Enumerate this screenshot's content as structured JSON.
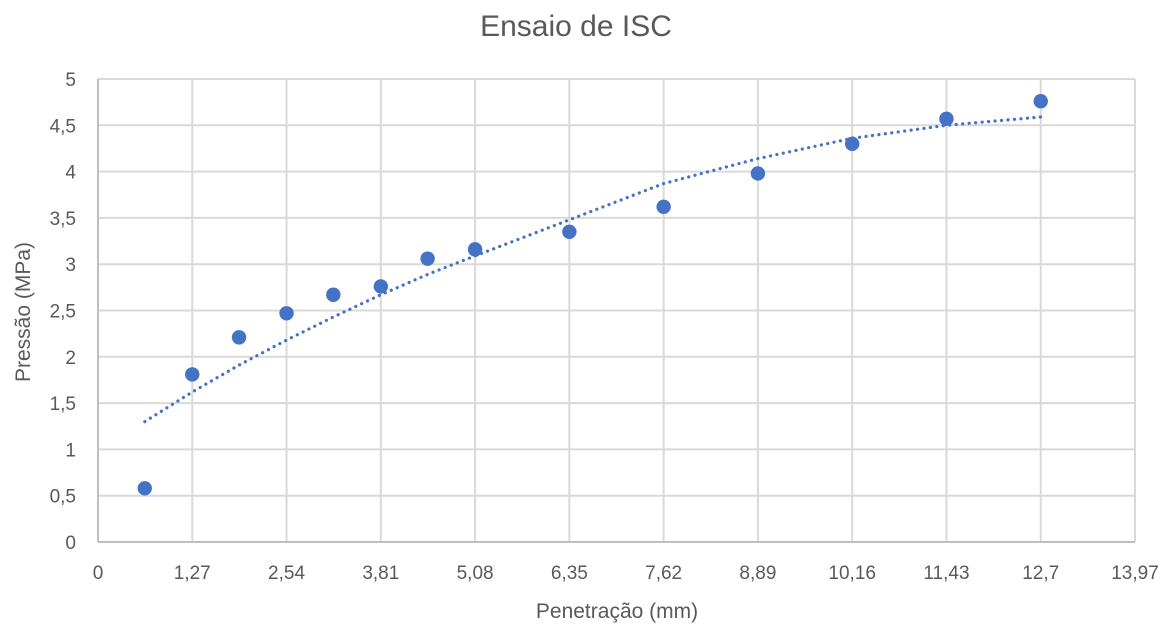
{
  "chart_data": {
    "type": "scatter",
    "title": "Ensaio de ISC",
    "xlabel": "Penetração (mm)",
    "ylabel": "Pressão (MPa)",
    "xlim": [
      0,
      13.97
    ],
    "ylim": [
      0,
      5
    ],
    "x_ticks": [
      0,
      1.27,
      2.54,
      3.81,
      5.08,
      6.35,
      7.62,
      8.89,
      10.16,
      11.43,
      12.7,
      13.97
    ],
    "x_tick_labels": [
      "0",
      "1,27",
      "2,54",
      "3,81",
      "5,08",
      "6,35",
      "7,62",
      "8,89",
      "10,16",
      "11,43",
      "12,7",
      "13,97"
    ],
    "y_ticks": [
      0,
      0.5,
      1,
      1.5,
      2,
      2.5,
      3,
      3.5,
      4,
      4.5,
      5
    ],
    "y_tick_labels": [
      "0",
      "0,5",
      "1",
      "1,5",
      "2",
      "2,5",
      "3",
      "3,5",
      "4",
      "4,5",
      "5"
    ],
    "grid": true,
    "series": [
      {
        "type": "scatter",
        "color": "#4472c4",
        "x": [
          0.63,
          1.27,
          1.9,
          2.54,
          3.17,
          3.81,
          4.44,
          5.08,
          6.35,
          7.62,
          8.89,
          10.16,
          11.43,
          12.7
        ],
        "y": [
          0.58,
          1.81,
          2.21,
          2.47,
          2.67,
          2.76,
          3.06,
          3.16,
          3.35,
          3.62,
          3.98,
          4.3,
          4.57,
          4.76
        ]
      },
      {
        "type": "trendline",
        "style": "dotted",
        "color": "#4472c4",
        "x": [
          0.63,
          1.27,
          1.9,
          2.54,
          3.17,
          3.81,
          4.44,
          5.08,
          6.35,
          7.62,
          8.89,
          10.16,
          11.43,
          12.7
        ],
        "y": [
          1.3,
          1.62,
          1.91,
          2.18,
          2.43,
          2.67,
          2.89,
          3.09,
          3.48,
          3.87,
          4.14,
          4.36,
          4.5,
          4.59
        ]
      }
    ]
  }
}
